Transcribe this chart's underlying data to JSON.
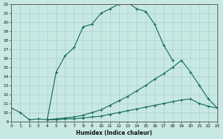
{
  "xlabel": "Humidex (Indice chaleur)",
  "bg_color": "#c8e8e4",
  "grid_color": "#a8d0cc",
  "line_color": "#1a6e60",
  "xlim": [
    0,
    23
  ],
  "ylim": [
    9,
    22
  ],
  "xticks": [
    0,
    1,
    2,
    3,
    4,
    5,
    6,
    7,
    8,
    9,
    10,
    11,
    12,
    13,
    14,
    15,
    16,
    17,
    18,
    19,
    20,
    21,
    22,
    23
  ],
  "yticks": [
    9,
    10,
    11,
    12,
    13,
    14,
    15,
    16,
    17,
    18,
    19,
    20,
    21,
    22
  ],
  "lines": [
    {
      "x": [
        0,
        1,
        2,
        3,
        4,
        5,
        6,
        7,
        8,
        9,
        10,
        11,
        12,
        13,
        14,
        15,
        16,
        17,
        18,
        19,
        20,
        21,
        22,
        23
      ],
      "y": [
        10.5,
        10.0,
        9.2,
        9.3,
        9.2,
        14.5,
        16.3,
        17.2,
        19.5,
        19.8,
        21.0,
        21.5,
        22.0,
        22.2,
        21.5,
        21.2,
        19.8,
        17.5,
        15.8,
        null,
        null,
        null,
        null,
        null
      ]
    },
    {
      "x": [
        4,
        5,
        6,
        7,
        8,
        9,
        10,
        11,
        12,
        13,
        14,
        15,
        16,
        17,
        18,
        19,
        20,
        21,
        22,
        23
      ],
      "y": [
        9.2,
        9.3,
        9.4,
        9.5,
        9.7,
        10.0,
        10.3,
        10.8,
        11.3,
        11.8,
        12.4,
        13.0,
        13.7,
        14.3,
        15.0,
        15.8,
        14.5,
        13.0,
        11.5,
        10.5
      ]
    },
    {
      "x": [
        4,
        5,
        6,
        7,
        8,
        9,
        10,
        11,
        12,
        13,
        14,
        15,
        16,
        17,
        18,
        19,
        20,
        21,
        22,
        23
      ],
      "y": [
        9.2,
        9.2,
        9.3,
        9.3,
        9.4,
        9.5,
        9.6,
        9.8,
        10.0,
        10.2,
        10.4,
        10.6,
        10.8,
        11.0,
        11.2,
        11.4,
        11.5,
        11.0,
        10.7,
        10.5
      ]
    }
  ]
}
